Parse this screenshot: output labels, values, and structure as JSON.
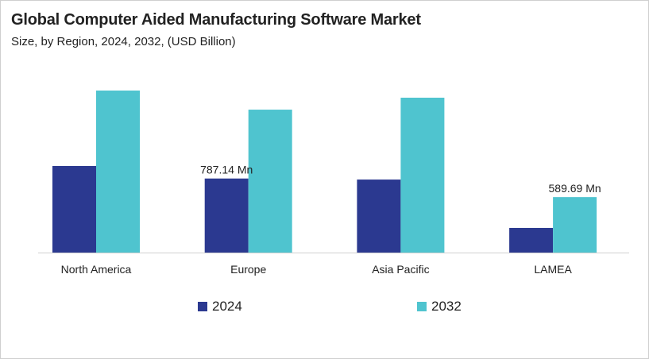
{
  "chart_data": {
    "type": "bar",
    "title": "Global Computer Aided Manufacturing Software Market",
    "subtitle": "Size, by Region, 2024, 2032, (USD Billion)",
    "categories": [
      "North America",
      "Europe",
      "Asia Pacific",
      "LAMEA"
    ],
    "series": [
      {
        "name": "2024",
        "color": "#2b3990",
        "values": [
          920,
          787.14,
          776,
          262
        ]
      },
      {
        "name": "2032",
        "color": "#4fc4cf",
        "values": [
          1722,
          1519,
          1646,
          589.69
        ]
      }
    ],
    "data_labels": [
      {
        "category": "Europe",
        "series": "2024",
        "text": "787.14 Mn"
      },
      {
        "category": "LAMEA",
        "series": "2032",
        "text": "589.69 Mn"
      }
    ],
    "ylim": [
      0,
      1722
    ],
    "grid": false,
    "legend": "bottom"
  }
}
